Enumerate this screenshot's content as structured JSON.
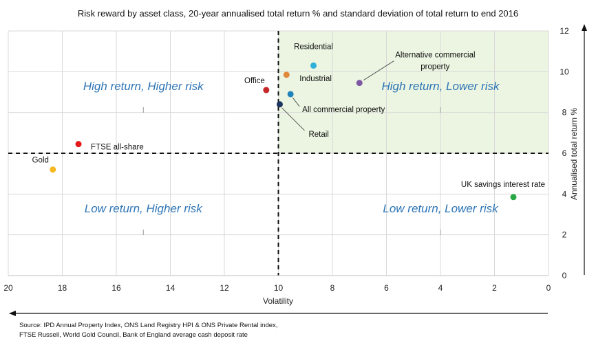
{
  "chart_data": {
    "type": "scatter",
    "title": "Risk reward by asset class, 20-year annualised total return % and standard deviation of total return to end 2016",
    "xlabel": "Volatility",
    "ylabel": "Annualised total return %",
    "xlim": [
      20,
      0
    ],
    "ylim": [
      0,
      12
    ],
    "x_reversed": true,
    "grid": true,
    "xticks": [
      "20",
      "18",
      "16",
      "14",
      "12",
      "10",
      "8",
      "6",
      "4",
      "2",
      "0"
    ],
    "yticks": [
      "0",
      "2",
      "4",
      "6",
      "8",
      "10",
      "12"
    ],
    "reference_lines": {
      "x": 10,
      "y": 6
    },
    "highlight_quadrant": {
      "x_from": 10,
      "x_to": 0,
      "y_from": 6,
      "y_to": 12,
      "color": "#ebf5e1"
    },
    "quadrant_labels": [
      {
        "text": "High return, Higher risk",
        "x": 15,
        "y": 9
      },
      {
        "text": "High return, Lower risk",
        "x": 4,
        "y": 9
      },
      {
        "text": "Low return, Higher risk",
        "x": 15,
        "y": 3
      },
      {
        "text": "Low return, Lower risk",
        "x": 4,
        "y": 3
      }
    ],
    "series": [
      {
        "name": "Residential",
        "x": 8.7,
        "y": 10.3,
        "color": "#2eb0d9"
      },
      {
        "name": "Alternative commercial property",
        "x": 7.0,
        "y": 9.45,
        "color": "#7f58a4"
      },
      {
        "name": "Industrial",
        "x": 9.7,
        "y": 9.85,
        "color": "#e0883b"
      },
      {
        "name": "Office",
        "x": 10.45,
        "y": 9.1,
        "color": "#c62828"
      },
      {
        "name": "All commercial property",
        "x": 9.55,
        "y": 8.9,
        "color": "#1f83b9"
      },
      {
        "name": "Retail",
        "x": 9.95,
        "y": 8.4,
        "color": "#1c3563"
      },
      {
        "name": "FTSE all-share",
        "x": 17.4,
        "y": 6.45,
        "color": "#e31a1c"
      },
      {
        "name": "Gold",
        "x": 18.35,
        "y": 5.2,
        "color": "#f5b820"
      },
      {
        "name": "UK savings interest rate",
        "x": 1.3,
        "y": 3.85,
        "color": "#28a745"
      }
    ],
    "source_lines": [
      "Source: IPD Annual Property Index, ONS Land Registry HPI & ONS Private Rental index,",
      "FTSE Russell, World Gold Council, Bank of England average cash deposit rate"
    ]
  }
}
